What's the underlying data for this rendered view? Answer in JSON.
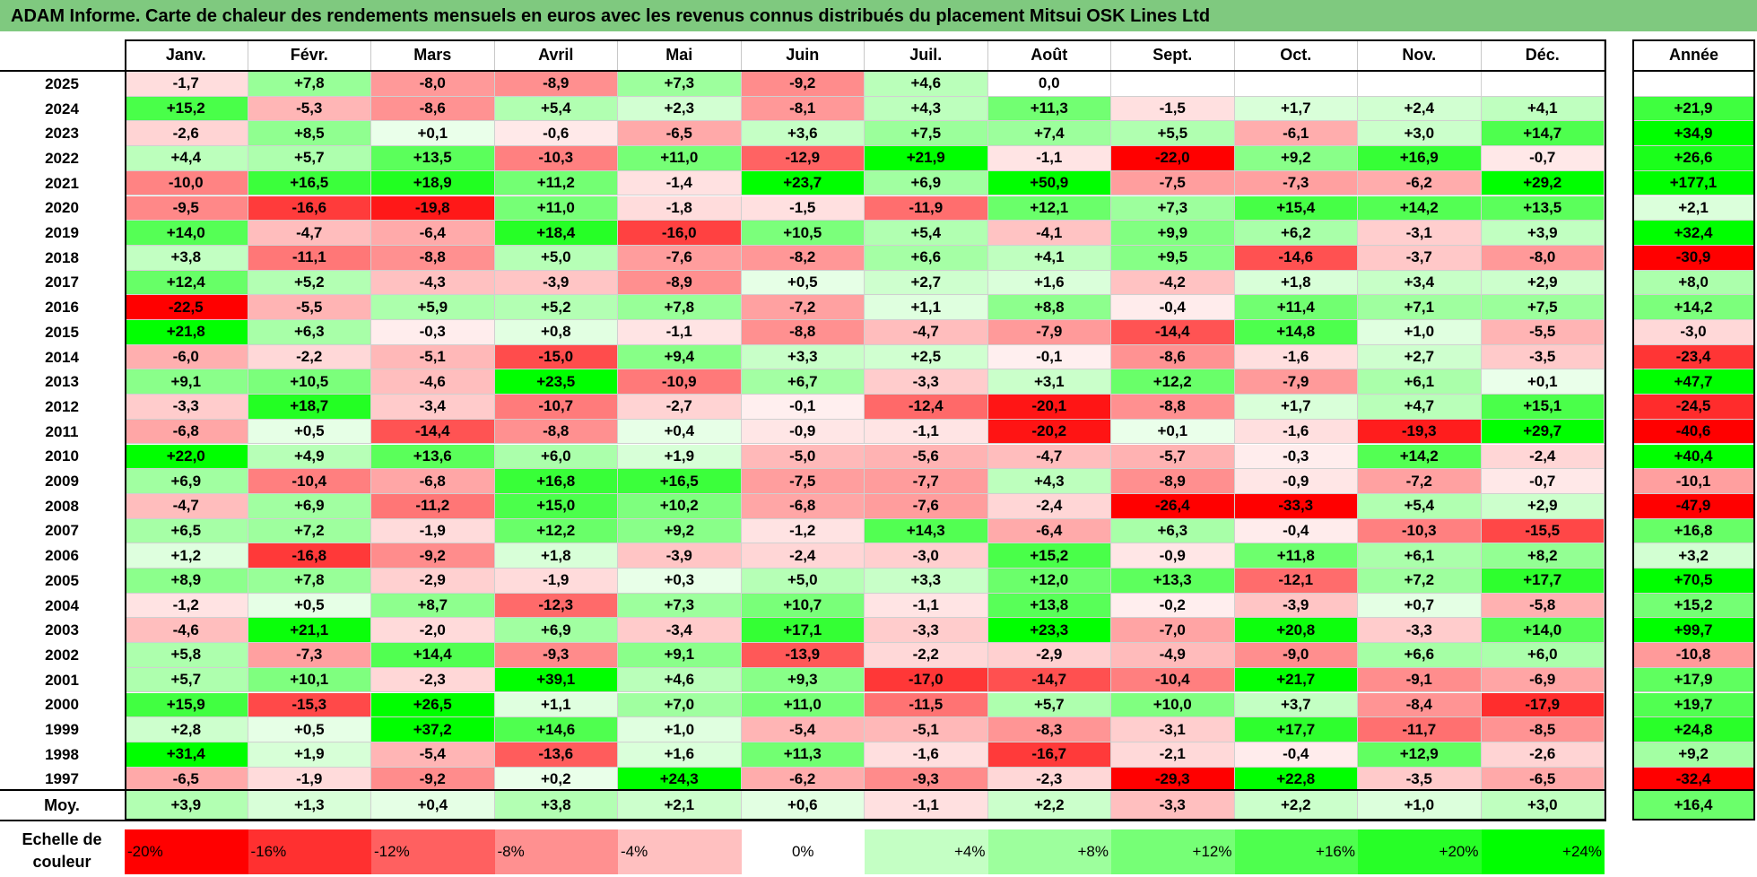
{
  "title": "ADAM Informe. Carte de chaleur des rendements mensuels en euros avec les revenus connus distribués du placement Mitsui OSK Lines Ltd",
  "year_header": "Année",
  "avg_label": "Moy.",
  "scale_label": "Echelle de couleur",
  "colors": {
    "title_bg": "#7fc97f",
    "negative_max": "#ff0000",
    "positive_max": "#00ff00",
    "neutral": "#ffffff"
  },
  "chart_data": {
    "type": "heatmap",
    "title": "ADAM Informe. Carte de chaleur des rendements mensuels en euros avec les revenus connus distribués du placement Mitsui OSK Lines Ltd",
    "months": [
      "Janv.",
      "Févr.",
      "Mars",
      "Avril",
      "Mai",
      "Juin",
      "Juil.",
      "Août",
      "Sept.",
      "Oct.",
      "Nov.",
      "Déc."
    ],
    "rows": [
      {
        "year": "2025",
        "values": [
          "-1,7",
          "+7,8",
          "-8,0",
          "-8,9",
          "+7,3",
          "-9,2",
          "+4,6",
          "0,0",
          "",
          "",
          "",
          ""
        ],
        "annual": ""
      },
      {
        "year": "2024",
        "values": [
          "+15,2",
          "-5,3",
          "-8,6",
          "+5,4",
          "+2,3",
          "-8,1",
          "+4,3",
          "+11,3",
          "-1,5",
          "+1,7",
          "+2,4",
          "+4,1"
        ],
        "annual": "+21,9"
      },
      {
        "year": "2023",
        "values": [
          "-2,6",
          "+8,5",
          "+0,1",
          "-0,6",
          "-6,5",
          "+3,6",
          "+7,5",
          "+7,4",
          "+5,5",
          "-6,1",
          "+3,0",
          "+14,7"
        ],
        "annual": "+34,9"
      },
      {
        "year": "2022",
        "values": [
          "+4,4",
          "+5,7",
          "+13,5",
          "-10,3",
          "+11,0",
          "-12,9",
          "+21,9",
          "-1,1",
          "-22,0",
          "+9,2",
          "+16,9",
          "-0,7"
        ],
        "annual": "+26,6"
      },
      {
        "year": "2021",
        "values": [
          "-10,0",
          "+16,5",
          "+18,9",
          "+11,2",
          "-1,4",
          "+23,7",
          "+6,9",
          "+50,9",
          "-7,5",
          "-7,3",
          "-6,2",
          "+29,2"
        ],
        "annual": "+177,1"
      },
      {
        "year": "2020",
        "values": [
          "-9,5",
          "-16,6",
          "-19,8",
          "+11,0",
          "-1,8",
          "-1,5",
          "-11,9",
          "+12,1",
          "+7,3",
          "+15,4",
          "+14,2",
          "+13,5"
        ],
        "annual": "+2,1"
      },
      {
        "year": "2019",
        "values": [
          "+14,0",
          "-4,7",
          "-6,4",
          "+18,4",
          "-16,0",
          "+10,5",
          "+5,4",
          "-4,1",
          "+9,9",
          "+6,2",
          "-3,1",
          "+3,9"
        ],
        "annual": "+32,4"
      },
      {
        "year": "2018",
        "values": [
          "+3,8",
          "-11,1",
          "-8,8",
          "+5,0",
          "-7,6",
          "-8,2",
          "+6,6",
          "+4,1",
          "+9,5",
          "-14,6",
          "-3,7",
          "-8,0"
        ],
        "annual": "-30,9"
      },
      {
        "year": "2017",
        "values": [
          "+12,4",
          "+5,2",
          "-4,3",
          "-3,9",
          "-8,9",
          "+0,5",
          "+2,7",
          "+1,6",
          "-4,2",
          "+1,8",
          "+3,4",
          "+2,9"
        ],
        "annual": "+8,0"
      },
      {
        "year": "2016",
        "values": [
          "-22,5",
          "-5,5",
          "+5,9",
          "+5,2",
          "+7,8",
          "-7,2",
          "+1,1",
          "+8,8",
          "-0,4",
          "+11,4",
          "+7,1",
          "+7,5"
        ],
        "annual": "+14,2"
      },
      {
        "year": "2015",
        "values": [
          "+21,8",
          "+6,3",
          "-0,3",
          "+0,8",
          "-1,1",
          "-8,8",
          "-4,7",
          "-7,9",
          "-14,4",
          "+14,8",
          "+1,0",
          "-5,5"
        ],
        "annual": "-3,0"
      },
      {
        "year": "2014",
        "values": [
          "-6,0",
          "-2,2",
          "-5,1",
          "-15,0",
          "+9,4",
          "+3,3",
          "+2,5",
          "-0,1",
          "-8,6",
          "-1,6",
          "+2,7",
          "-3,5"
        ],
        "annual": "-23,4"
      },
      {
        "year": "2013",
        "values": [
          "+9,1",
          "+10,5",
          "-4,6",
          "+23,5",
          "-10,9",
          "+6,7",
          "-3,3",
          "+3,1",
          "+12,2",
          "-7,9",
          "+6,1",
          "+0,1"
        ],
        "annual": "+47,7"
      },
      {
        "year": "2012",
        "values": [
          "-3,3",
          "+18,7",
          "-3,4",
          "-10,7",
          "-2,7",
          "-0,1",
          "-12,4",
          "-20,1",
          "-8,8",
          "+1,7",
          "+4,7",
          "+15,1"
        ],
        "annual": "-24,5"
      },
      {
        "year": "2011",
        "values": [
          "-6,8",
          "+0,5",
          "-14,4",
          "-8,8",
          "+0,4",
          "-0,9",
          "-1,1",
          "-20,2",
          "+0,1",
          "-1,6",
          "-19,3",
          "+29,7"
        ],
        "annual": "-40,6"
      },
      {
        "year": "2010",
        "values": [
          "+22,0",
          "+4,9",
          "+13,6",
          "+6,0",
          "+1,9",
          "-5,0",
          "-5,6",
          "-4,7",
          "-5,7",
          "-0,3",
          "+14,2",
          "-2,4"
        ],
        "annual": "+40,4"
      },
      {
        "year": "2009",
        "values": [
          "+6,9",
          "-10,4",
          "-6,8",
          "+16,8",
          "+16,5",
          "-7,5",
          "-7,7",
          "+4,3",
          "-8,9",
          "-0,9",
          "-7,2",
          "-0,7"
        ],
        "annual": "-10,1"
      },
      {
        "year": "2008",
        "values": [
          "-4,7",
          "+6,9",
          "-11,2",
          "+15,0",
          "+10,2",
          "-6,8",
          "-7,6",
          "-2,4",
          "-26,4",
          "-33,3",
          "+5,4",
          "+2,9"
        ],
        "annual": "-47,9"
      },
      {
        "year": "2007",
        "values": [
          "+6,5",
          "+7,2",
          "-1,9",
          "+12,2",
          "+9,2",
          "-1,2",
          "+14,3",
          "-6,4",
          "+6,3",
          "-0,4",
          "-10,3",
          "-15,5"
        ],
        "annual": "+16,8"
      },
      {
        "year": "2006",
        "values": [
          "+1,2",
          "-16,8",
          "-9,2",
          "+1,8",
          "-3,9",
          "-2,4",
          "-3,0",
          "+15,2",
          "-0,9",
          "+11,8",
          "+6,1",
          "+8,2"
        ],
        "annual": "+3,2"
      },
      {
        "year": "2005",
        "values": [
          "+8,9",
          "+7,8",
          "-2,9",
          "-1,9",
          "+0,3",
          "+5,0",
          "+3,3",
          "+12,0",
          "+13,3",
          "-12,1",
          "+7,2",
          "+17,7"
        ],
        "annual": "+70,5"
      },
      {
        "year": "2004",
        "values": [
          "-1,2",
          "+0,5",
          "+8,7",
          "-12,3",
          "+7,3",
          "+10,7",
          "-1,1",
          "+13,8",
          "-0,2",
          "-3,9",
          "+0,7",
          "-5,8"
        ],
        "annual": "+15,2"
      },
      {
        "year": "2003",
        "values": [
          "-4,6",
          "+21,1",
          "-2,0",
          "+6,9",
          "-3,4",
          "+17,1",
          "-3,3",
          "+23,3",
          "-7,0",
          "+20,8",
          "-3,3",
          "+14,0"
        ],
        "annual": "+99,7"
      },
      {
        "year": "2002",
        "values": [
          "+5,8",
          "-7,3",
          "+14,4",
          "-9,3",
          "+9,1",
          "-13,9",
          "-2,2",
          "-2,9",
          "-4,9",
          "-9,0",
          "+6,6",
          "+6,0"
        ],
        "annual": "-10,8"
      },
      {
        "year": "2001",
        "values": [
          "+5,7",
          "+10,1",
          "-2,3",
          "+39,1",
          "+4,6",
          "+9,3",
          "-17,0",
          "-14,7",
          "-10,4",
          "+21,7",
          "-9,1",
          "-6,9"
        ],
        "annual": "+17,9"
      },
      {
        "year": "2000",
        "values": [
          "+15,9",
          "-15,3",
          "+26,5",
          "+1,1",
          "+7,0",
          "+11,0",
          "-11,5",
          "+5,7",
          "+10,0",
          "+3,7",
          "-8,4",
          "-17,9"
        ],
        "annual": "+19,7"
      },
      {
        "year": "1999",
        "values": [
          "+2,8",
          "+0,5",
          "+37,2",
          "+14,6",
          "+1,0",
          "-5,4",
          "-5,1",
          "-8,3",
          "-3,1",
          "+17,7",
          "-11,7",
          "-8,5"
        ],
        "annual": "+24,8"
      },
      {
        "year": "1998",
        "values": [
          "+31,4",
          "+1,9",
          "-5,4",
          "-13,6",
          "+1,6",
          "+11,3",
          "-1,6",
          "-16,7",
          "-2,1",
          "-0,4",
          "+12,9",
          "-2,6"
        ],
        "annual": "+9,2"
      },
      {
        "year": "1997",
        "values": [
          "-6,5",
          "-1,9",
          "-9,2",
          "+0,2",
          "+24,3",
          "-6,2",
          "-9,3",
          "-2,3",
          "-29,3",
          "+22,8",
          "-3,5",
          "-6,5"
        ],
        "annual": "-32,4"
      }
    ],
    "average": {
      "values": [
        "+3,9",
        "+1,3",
        "+0,4",
        "+3,8",
        "+2,1",
        "+0,6",
        "-1,1",
        "+2,2",
        "-3,3",
        "+2,2",
        "+1,0",
        "+3,0"
      ],
      "annual": "+16,4"
    },
    "scale": [
      "-20%",
      "-16%",
      "-12%",
      "-8%",
      "-4%",
      "0%",
      "+4%",
      "+8%",
      "+12%",
      "+16%",
      "+20%",
      "+24%"
    ]
  }
}
